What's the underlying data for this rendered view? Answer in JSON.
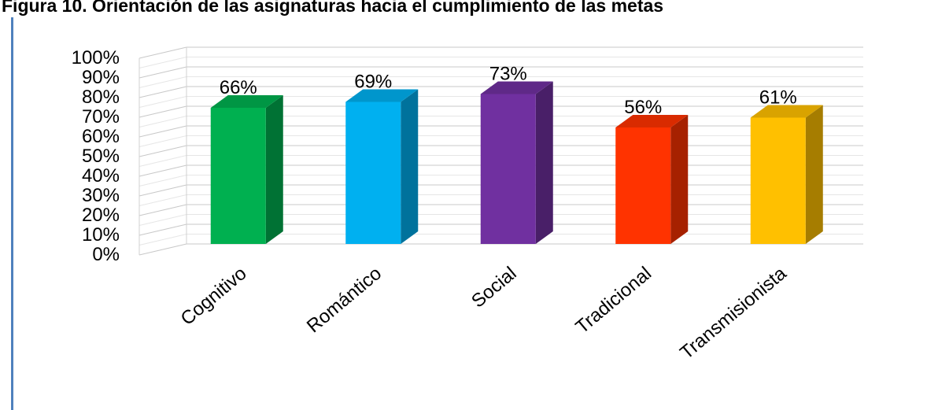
{
  "figure_title": "Figura 10. Orientación de las asignaturas hacia el cumplimiento de las metas",
  "frame_color": "#4f81bd",
  "chart_data": {
    "type": "bar",
    "style": "3d-column",
    "title": "",
    "xlabel": "",
    "ylabel": "",
    "ylim": [
      0,
      100
    ],
    "y_ticks": [
      "0%",
      "10%",
      "20%",
      "30%",
      "40%",
      "50%",
      "60%",
      "70%",
      "80%",
      "90%",
      "100%"
    ],
    "categories": [
      "Cognitivo",
      "Romántico",
      "Social",
      "Tradicional",
      "Transmisionista"
    ],
    "values": [
      66,
      69,
      73,
      56,
      61
    ],
    "data_labels": [
      "66%",
      "69%",
      "73%",
      "56%",
      "61%"
    ],
    "bar_colors": [
      "#00b050",
      "#00b0f0",
      "#7030a0",
      "#ff3300",
      "#ffc000"
    ],
    "grid": true,
    "legend": "none"
  }
}
